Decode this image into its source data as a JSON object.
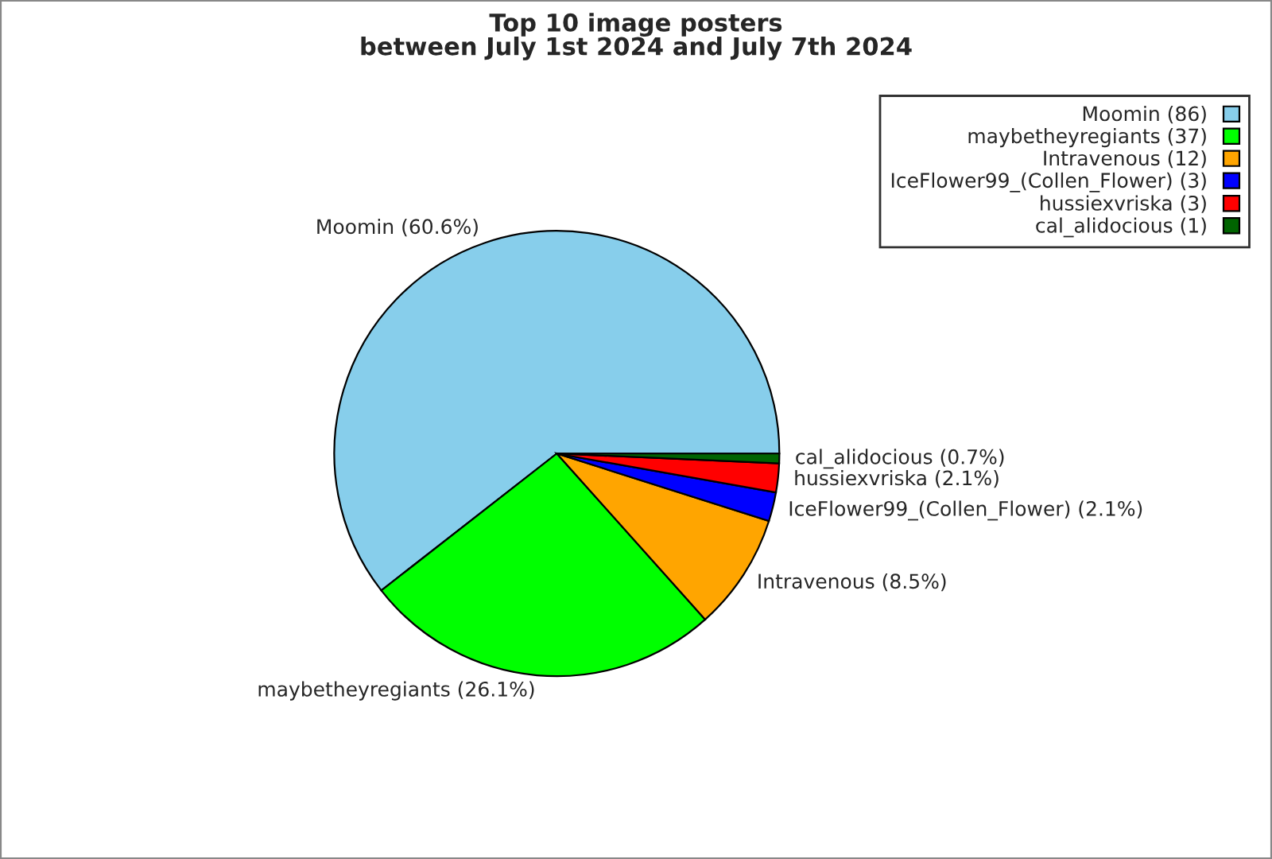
{
  "chart_data": {
    "type": "pie",
    "title": "Top 10 image posters\nbetween July 1st 2024 and July 7th 2024",
    "categories": [
      "Moomin (86)",
      "maybetheyregiants (37)",
      "Intravenous (12)",
      "IceFlower99_(Collen_Flower) (3)",
      "hussiexvriska (3)",
      "cal_alidocious (1)"
    ],
    "values": [
      60.6,
      26.1,
      8.5,
      2.1,
      2.1,
      0.7
    ],
    "value_labels": [
      "Moomin (60.6%)",
      "maybetheyregiants (26.1%)",
      "Intravenous (8.5%)",
      "IceFlower99_(Collen_Flower) (2.1%)",
      "hussiexvriska (2.1%)",
      "cal_alidocious (0.7%)"
    ],
    "colors": [
      "#87ceeb",
      "#00ff00",
      "#ffa500",
      "#0000ff",
      "#ff0000",
      "#006400"
    ],
    "legend": "top right"
  }
}
